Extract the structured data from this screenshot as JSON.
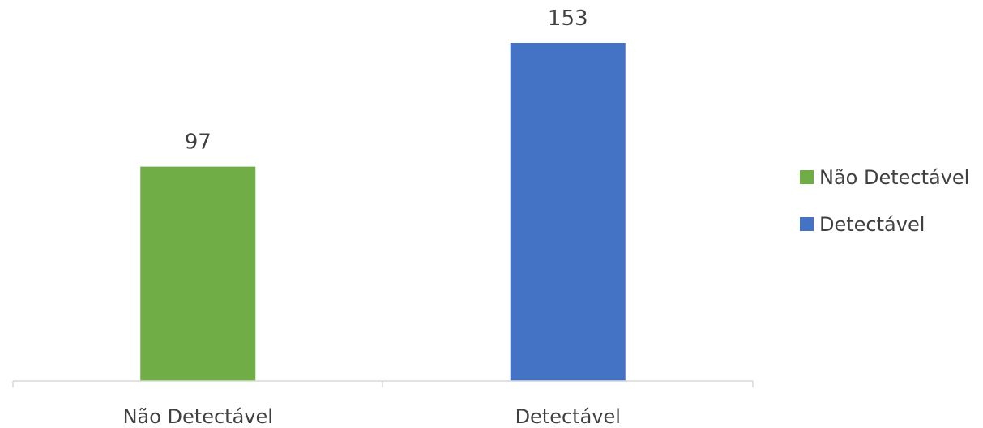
{
  "chart_data": {
    "type": "bar",
    "categories": [
      "Não Detectável",
      "Detectável"
    ],
    "values": [
      97,
      153
    ],
    "data_labels": [
      "97",
      "153"
    ],
    "colors": [
      "#70ad47",
      "#4472c4"
    ],
    "ylim": [
      0,
      153
    ],
    "grid": false,
    "legend": {
      "position": "right",
      "entries": [
        {
          "label": "Não Detectável",
          "color": "#70ad47"
        },
        {
          "label": "Detectável",
          "color": "#4472c4"
        }
      ]
    }
  }
}
